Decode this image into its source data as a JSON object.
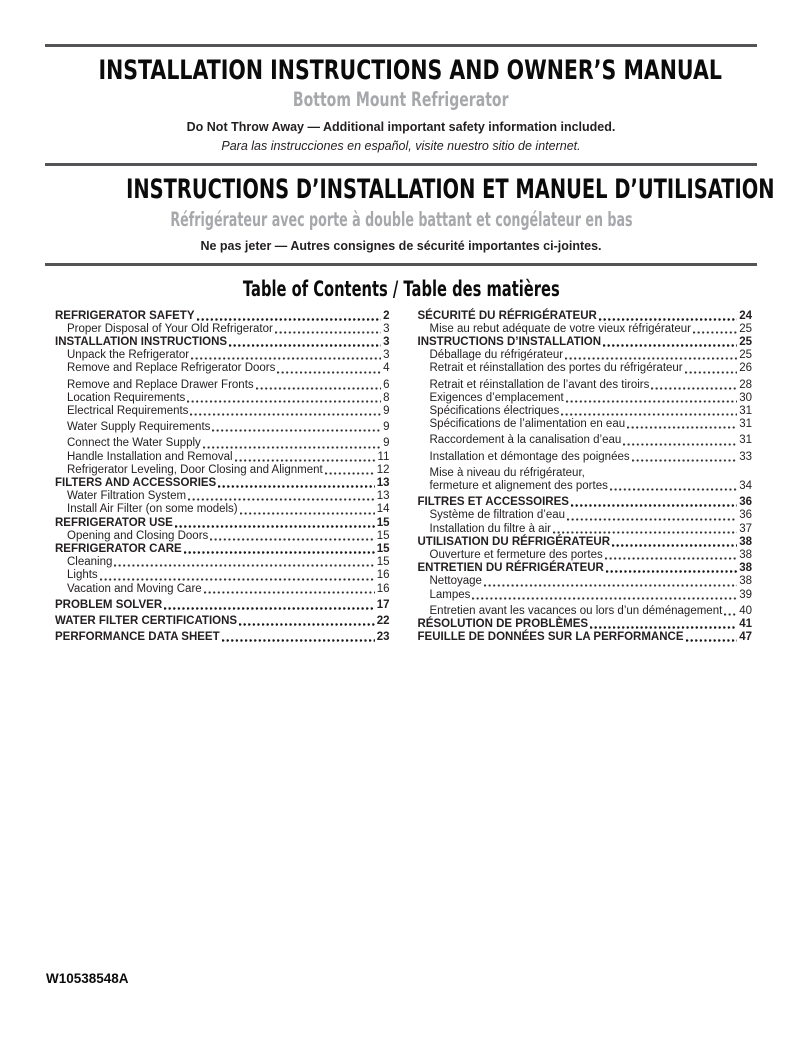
{
  "header_en": {
    "title": "INSTALLATION INSTRUCTIONS AND OWNER’S MANUAL",
    "subtitle": "Bottom Mount Refrigerator",
    "notice_bold": "Do Not Throw Away — Additional important safety information included.",
    "notice_italic": "Para las instrucciones en español, visite nuestro sitio de internet."
  },
  "header_fr": {
    "title": "INSTRUCTIONS D’INSTALLATION ET MANUEL D’UTILISATION",
    "subtitle": "Réfrigérateur avec porte à double battant et congélateur en bas",
    "notice_bold": "Ne pas jeter — Autres consignes de sécurité importantes ci-jointes."
  },
  "toc": {
    "heading": "Table of Contents / Table des matières",
    "left": [
      {
        "label": "REFRIGERATOR SAFETY",
        "page": "2",
        "bold": true
      },
      {
        "label": "Proper Disposal of Your Old Refrigerator",
        "page": "3",
        "indent": true
      },
      {
        "label": "INSTALLATION INSTRUCTIONS",
        "page": "3",
        "bold": true
      },
      {
        "label": "Unpack the Refrigerator",
        "page": "3",
        "indent": true
      },
      {
        "label": "Remove and Replace Refrigerator Doors",
        "page": "4",
        "indent": true
      },
      {
        "label": "Remove and Replace Drawer Fronts",
        "page": "6",
        "indent": true,
        "gap": true
      },
      {
        "label": "Location Requirements",
        "page": "8",
        "indent": true
      },
      {
        "label": "Electrical Requirements",
        "page": "9",
        "indent": true
      },
      {
        "label": "Water Supply Requirements",
        "page": "9",
        "indent": true,
        "gap": true
      },
      {
        "label": "Connect the Water Supply",
        "page": "9",
        "indent": true,
        "gap": true
      },
      {
        "label": "Handle Installation and Removal",
        "page": "11",
        "indent": true
      },
      {
        "label": "Refrigerator Leveling, Door Closing and Alignment",
        "page": "12",
        "indent": true
      },
      {
        "label": "FILTERS AND ACCESSORIES",
        "page": "13",
        "bold": true
      },
      {
        "label": "Water Filtration System",
        "page": "13",
        "indent": true
      },
      {
        "label": "Install Air Filter (on some models)",
        "page": "14",
        "indent": true
      },
      {
        "label": "REFRIGERATOR USE",
        "page": "15",
        "bold": true
      },
      {
        "label": "Opening and Closing Doors",
        "page": "15",
        "indent": true
      },
      {
        "label": "REFRIGERATOR CARE",
        "page": "15",
        "bold": true
      },
      {
        "label": "Cleaning",
        "page": "15",
        "indent": true
      },
      {
        "label": "Lights",
        "page": "16",
        "indent": true
      },
      {
        "label": "Vacation and Moving Care",
        "page": "16",
        "indent": true
      },
      {
        "label": "PROBLEM SOLVER",
        "page": "17",
        "bold": true,
        "gap": true
      },
      {
        "label": "WATER FILTER CERTIFICATIONS",
        "page": "22",
        "bold": true,
        "gap": true
      },
      {
        "label": "PERFORMANCE DATA SHEET",
        "page": "23",
        "bold": true,
        "gap": true
      }
    ],
    "right": [
      {
        "label": "SÉCURITÉ DU RÉFRIGÉRATEUR",
        "page": "24",
        "bold": true
      },
      {
        "label": "Mise au rebut adéquate de votre vieux réfrigérateur",
        "page": "25",
        "indent": true
      },
      {
        "label": "INSTRUCTIONS D’INSTALLATION",
        "page": "25",
        "bold": true
      },
      {
        "label": "Déballage du réfrigérateur",
        "page": "25",
        "indent": true
      },
      {
        "label": "Retrait et réinstallation des portes du réfrigérateur",
        "page": "26",
        "indent": true
      },
      {
        "label": "Retrait et réinstallation de l’avant des tiroirs",
        "page": "28",
        "indent": true,
        "gap": true
      },
      {
        "label": "Exigences d’emplacement",
        "page": "30",
        "indent": true
      },
      {
        "label": "Spécifications électriques",
        "page": "31",
        "indent": true
      },
      {
        "label": "Spécifications de l’alimentation en eau",
        "page": "31",
        "indent": true
      },
      {
        "label": "Raccordement à la canalisation d’eau",
        "page": "31",
        "indent": true,
        "gap": true
      },
      {
        "label": "Installation et démontage des poignées",
        "page": "33",
        "indent": true,
        "gap": true
      },
      {
        "label": "Mise à niveau du réfrigérateur,",
        "page": null,
        "indent": true,
        "gap": true
      },
      {
        "label": "fermeture et alignement des portes",
        "page": "34",
        "indent": true
      },
      {
        "label": "FILTRES ET ACCESSOIRES",
        "page": "36",
        "bold": true,
        "gap": true
      },
      {
        "label": "Système de filtration d’eau",
        "page": "36",
        "indent": true
      },
      {
        "label": "Installation du filtre à air",
        "page": "37",
        "indent": true
      },
      {
        "label": "UTILISATION DU RÉFRIGÉRATEUR",
        "page": "38",
        "bold": true
      },
      {
        "label": "Ouverture et fermeture des portes",
        "page": "38",
        "indent": true
      },
      {
        "label": "ENTRETIEN DU RÉFRIGÉRATEUR",
        "page": "38",
        "bold": true
      },
      {
        "label": "Nettoyage",
        "page": "38",
        "indent": true
      },
      {
        "label": "Lampes",
        "page": "39",
        "indent": true
      },
      {
        "label": "Entretien avant les vacances ou lors d’un déménagement",
        "page": "40",
        "indent": true,
        "gap": true
      },
      {
        "label": "RÉSOLUTION DE PROBLÈMES",
        "page": "41",
        "bold": true
      },
      {
        "label": "FEUILLE DE DONNÉES SUR LA PERFORMANCE",
        "page": "47",
        "bold": true
      }
    ]
  },
  "footer": {
    "doc_number": "W10538548A"
  },
  "colors": {
    "subtitle_gray": "#a6a8ab",
    "rule_gray": "#545456",
    "text": "#231f20"
  }
}
